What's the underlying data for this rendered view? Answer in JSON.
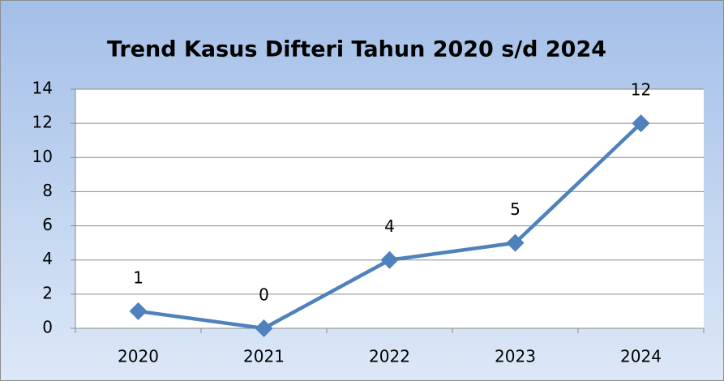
{
  "chart_data": {
    "type": "line",
    "title": "Trend Kasus Difteri  Tahun 2020 s/d  2024",
    "categories": [
      "2020",
      "2021",
      "2022",
      "2023",
      "2024"
    ],
    "values": [
      1,
      0,
      4,
      5,
      12
    ],
    "color": "#4f81bd",
    "ylim": [
      0,
      14
    ],
    "yticks": [
      0,
      2,
      4,
      6,
      8,
      10,
      12,
      14
    ],
    "grid": true
  }
}
